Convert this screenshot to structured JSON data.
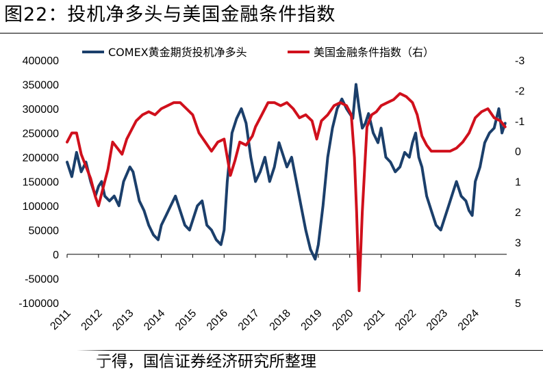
{
  "header": {
    "title": "图22：投机净多头与美国金融条件指数"
  },
  "footer": {
    "source": "亍得，国信证券经济研究所整理"
  },
  "colors": {
    "gold_series": "#1b3f6b",
    "fci_series": "#d0101c"
  },
  "chart_data": {
    "type": "line",
    "title": "",
    "xlabel": "",
    "ylabel": "",
    "grid": false,
    "legend_position": "top",
    "x_ticks": [
      "2011",
      "2012",
      "2013",
      "2014",
      "2015",
      "2016",
      "2017",
      "2018",
      "2019",
      "2020",
      "2021",
      "2022",
      "2023",
      "2024"
    ],
    "left_axis": {
      "ylim": [
        -100000,
        400000
      ],
      "ticks": [
        "400000",
        "350000",
        "300000",
        "250000",
        "200000",
        "150000",
        "100000",
        "50000",
        "0",
        "-50000",
        "-100000"
      ]
    },
    "right_axis": {
      "ylim": [
        -3,
        5
      ],
      "inverted": true,
      "ticks": [
        "-3",
        "-2",
        "-1",
        "0",
        "1",
        "2",
        "3",
        "4",
        "5"
      ]
    },
    "series": [
      {
        "name": "COMEX黄金期货投机净多头",
        "axis": "left",
        "x": [
          2011.0,
          2011.15,
          2011.3,
          2011.45,
          2011.6,
          2011.75,
          2011.9,
          2012.0,
          2012.1,
          2012.2,
          2012.35,
          2012.5,
          2012.65,
          2012.8,
          2013.0,
          2013.1,
          2013.2,
          2013.3,
          2013.45,
          2013.6,
          2013.75,
          2013.9,
          2014.0,
          2014.15,
          2014.3,
          2014.45,
          2014.6,
          2014.75,
          2014.9,
          2015.0,
          2015.15,
          2015.3,
          2015.45,
          2015.6,
          2015.75,
          2015.9,
          2016.0,
          2016.1,
          2016.25,
          2016.4,
          2016.55,
          2016.7,
          2016.85,
          2017.0,
          2017.15,
          2017.3,
          2017.45,
          2017.6,
          2017.75,
          2017.9,
          2018.0,
          2018.15,
          2018.3,
          2018.45,
          2018.6,
          2018.75,
          2018.9,
          2019.0,
          2019.15,
          2019.3,
          2019.45,
          2019.6,
          2019.75,
          2019.9,
          2020.0,
          2020.1,
          2020.2,
          2020.3,
          2020.4,
          2020.5,
          2020.6,
          2020.75,
          2020.9,
          2021.0,
          2021.15,
          2021.3,
          2021.45,
          2021.6,
          2021.75,
          2021.9,
          2022.0,
          2022.1,
          2022.2,
          2022.3,
          2022.45,
          2022.6,
          2022.75,
          2022.9,
          2023.0,
          2023.15,
          2023.3,
          2023.4,
          2023.55,
          2023.7,
          2023.8,
          2023.9,
          2024.0,
          2024.15,
          2024.3,
          2024.45,
          2024.6,
          2024.75,
          2024.85,
          2024.95
        ],
        "values": [
          190000,
          160000,
          210000,
          170000,
          190000,
          150000,
          120000,
          140000,
          150000,
          120000,
          110000,
          120000,
          100000,
          150000,
          180000,
          170000,
          140000,
          110000,
          90000,
          60000,
          40000,
          30000,
          60000,
          80000,
          100000,
          120000,
          90000,
          60000,
          50000,
          70000,
          100000,
          110000,
          60000,
          50000,
          30000,
          20000,
          50000,
          150000,
          250000,
          280000,
          300000,
          270000,
          200000,
          150000,
          170000,
          200000,
          150000,
          180000,
          230000,
          200000,
          180000,
          200000,
          150000,
          100000,
          50000,
          10000,
          -10000,
          20000,
          100000,
          200000,
          260000,
          300000,
          320000,
          300000,
          290000,
          280000,
          350000,
          300000,
          260000,
          270000,
          290000,
          250000,
          230000,
          260000,
          200000,
          190000,
          170000,
          180000,
          210000,
          200000,
          230000,
          250000,
          200000,
          180000,
          120000,
          90000,
          60000,
          50000,
          70000,
          100000,
          130000,
          150000,
          120000,
          110000,
          90000,
          80000,
          150000,
          180000,
          230000,
          250000,
          260000,
          300000,
          250000,
          270000
        ]
      },
      {
        "name": "美国金融条件指数（右）",
        "axis": "right",
        "x": [
          2011.0,
          2011.15,
          2011.3,
          2011.45,
          2011.6,
          2011.75,
          2011.9,
          2012.0,
          2012.15,
          2012.3,
          2012.45,
          2012.6,
          2012.75,
          2012.9,
          2013.0,
          2013.2,
          2013.4,
          2013.6,
          2013.8,
          2014.0,
          2014.2,
          2014.4,
          2014.6,
          2014.8,
          2015.0,
          2015.2,
          2015.4,
          2015.6,
          2015.8,
          2016.0,
          2016.1,
          2016.2,
          2016.35,
          2016.5,
          2016.7,
          2016.9,
          2017.0,
          2017.2,
          2017.4,
          2017.6,
          2017.8,
          2018.0,
          2018.2,
          2018.4,
          2018.6,
          2018.8,
          2018.95,
          2019.1,
          2019.3,
          2019.5,
          2019.7,
          2019.9,
          2020.05,
          2020.15,
          2020.22,
          2020.3,
          2020.4,
          2020.55,
          2020.7,
          2020.85,
          2021.0,
          2021.2,
          2021.4,
          2021.6,
          2021.8,
          2022.0,
          2022.15,
          2022.3,
          2022.45,
          2022.6,
          2022.8,
          2023.0,
          2023.2,
          2023.4,
          2023.6,
          2023.8,
          2024.0,
          2024.2,
          2024.4,
          2024.6,
          2024.8,
          2024.95
        ],
        "values": [
          -0.3,
          -0.6,
          -0.6,
          0.1,
          0.5,
          0.9,
          1.5,
          1.8,
          1.2,
          0.6,
          -0.3,
          -0.1,
          0.1,
          -0.4,
          -0.6,
          -1.0,
          -1.2,
          -1.3,
          -1.2,
          -1.4,
          -1.5,
          -1.6,
          -1.6,
          -1.4,
          -1.2,
          -0.6,
          -0.3,
          0.0,
          -0.3,
          -0.4,
          0.2,
          0.8,
          0.3,
          -0.3,
          -0.2,
          -0.5,
          -0.8,
          -1.2,
          -1.6,
          -1.6,
          -1.5,
          -1.6,
          -1.4,
          -1.1,
          -1.2,
          -1.0,
          -0.4,
          -1.0,
          -1.2,
          -1.5,
          -1.6,
          -1.5,
          -1.2,
          0.2,
          2.0,
          4.6,
          2.0,
          -0.8,
          -1.2,
          -1.3,
          -1.5,
          -1.6,
          -1.7,
          -1.9,
          -1.8,
          -1.6,
          -1.2,
          -0.5,
          -0.2,
          0.0,
          0.0,
          0.0,
          0.0,
          -0.1,
          -0.3,
          -0.6,
          -1.1,
          -1.3,
          -1.4,
          -1.1,
          -1.0,
          -0.8
        ]
      }
    ]
  }
}
